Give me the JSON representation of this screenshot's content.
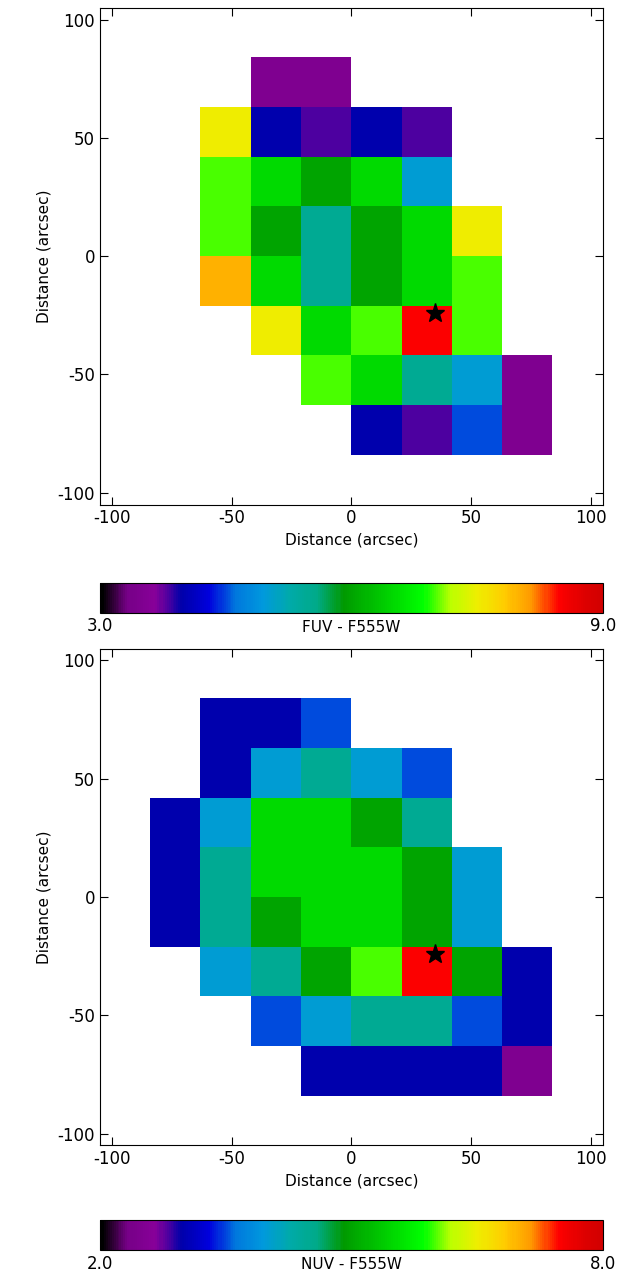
{
  "chart_data": [
    {
      "type": "heatmap",
      "xlabel": "Distance (arcsec)",
      "ylabel": "Distance (arcsec)",
      "xlim": [
        -105,
        105
      ],
      "ylim": [
        -105,
        105
      ],
      "xticks": [
        -100,
        -50,
        0,
        50,
        100
      ],
      "yticks": [
        -100,
        -50,
        0,
        50,
        100
      ],
      "x_edges": [
        -105,
        -84,
        -63,
        -42,
        -21,
        0,
        21,
        42,
        63,
        84,
        105
      ],
      "y_edges": [
        105,
        84,
        63,
        42,
        21,
        0,
        -21,
        -42,
        -63,
        -84,
        -105
      ],
      "cells": [
        [
          null,
          null,
          null,
          null,
          null,
          null,
          null,
          null,
          null,
          null
        ],
        [
          null,
          null,
          null,
          3.5,
          3.5,
          null,
          null,
          null,
          null,
          null
        ],
        [
          null,
          null,
          7.5,
          4.0,
          3.8,
          4.0,
          3.8,
          null,
          null,
          null
        ],
        [
          null,
          null,
          7.0,
          6.5,
          6.0,
          6.5,
          5.0,
          null,
          null,
          null
        ],
        [
          null,
          null,
          7.0,
          6.0,
          5.5,
          6.0,
          6.5,
          7.5,
          null,
          null
        ],
        [
          null,
          null,
          8.0,
          6.5,
          5.5,
          6.0,
          6.5,
          7.0,
          null,
          null
        ],
        [
          null,
          null,
          null,
          7.5,
          6.5,
          7.0,
          8.5,
          7.0,
          null,
          null
        ],
        [
          null,
          null,
          null,
          null,
          7.0,
          6.5,
          5.5,
          5.0,
          3.5,
          null
        ],
        [
          null,
          null,
          null,
          null,
          null,
          4.0,
          3.8,
          4.5,
          3.5,
          null
        ],
        [
          null,
          null,
          null,
          null,
          null,
          null,
          null,
          null,
          null,
          null
        ]
      ],
      "star": {
        "x": 35,
        "y": -24,
        "marker": "*"
      },
      "colorbar": {
        "label": "FUV - F555W",
        "range": [
          3.0,
          9.0
        ],
        "ticks": [
          {
            "value": 3.0,
            "label": "3.0"
          },
          {
            "value": 9.0,
            "label": "9.0"
          }
        ]
      }
    },
    {
      "type": "heatmap",
      "xlabel": "Distance (arcsec)",
      "ylabel": "Distance (arcsec)",
      "xlim": [
        -105,
        105
      ],
      "ylim": [
        -105,
        105
      ],
      "xticks": [
        -100,
        -50,
        0,
        50,
        100
      ],
      "yticks": [
        -100,
        -50,
        0,
        50,
        100
      ],
      "x_edges": [
        -105,
        -84,
        -63,
        -42,
        -21,
        0,
        21,
        42,
        63,
        84,
        105
      ],
      "y_edges": [
        105,
        84,
        63,
        42,
        21,
        0,
        -21,
        -42,
        -63,
        -84,
        -105
      ],
      "cells": [
        [
          null,
          null,
          null,
          null,
          null,
          null,
          null,
          null,
          null,
          null
        ],
        [
          null,
          null,
          3.0,
          3.0,
          3.5,
          null,
          null,
          null,
          null,
          null
        ],
        [
          null,
          null,
          3.0,
          4.0,
          4.5,
          4.0,
          3.5,
          null,
          null,
          null
        ],
        [
          null,
          3.0,
          4.0,
          5.5,
          5.5,
          5.0,
          4.5,
          null,
          null,
          null
        ],
        [
          null,
          3.0,
          4.5,
          5.5,
          5.5,
          5.5,
          5.0,
          4.0,
          null,
          null
        ],
        [
          null,
          3.0,
          4.5,
          5.0,
          5.5,
          5.5,
          5.0,
          4.0,
          null,
          null
        ],
        [
          null,
          null,
          4.0,
          4.5,
          5.0,
          6.0,
          7.5,
          5.0,
          3.0,
          null
        ],
        [
          null,
          null,
          null,
          3.5,
          4.0,
          4.5,
          4.5,
          3.5,
          3.0,
          null
        ],
        [
          null,
          null,
          null,
          null,
          3.0,
          3.0,
          3.0,
          3.0,
          2.5,
          null
        ],
        [
          null,
          null,
          null,
          null,
          null,
          null,
          null,
          null,
          null,
          null
        ]
      ],
      "star": {
        "x": 35,
        "y": -24,
        "marker": "*"
      },
      "colorbar": {
        "label": "NUV - F555W",
        "range": [
          2.0,
          8.0
        ],
        "ticks": [
          {
            "value": 2.0,
            "label": "2.0"
          },
          {
            "value": 8.0,
            "label": "8.0"
          }
        ]
      }
    }
  ]
}
